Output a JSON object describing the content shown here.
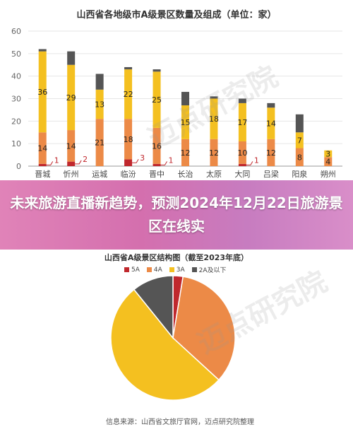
{
  "chart_data": [
    {
      "type": "bar",
      "title": "山西省各地级市A级景区数量及组成（单位：家）",
      "categories": [
        "晋城",
        "忻州",
        "运城",
        "临汾",
        "晋中",
        "长治",
        "太原",
        "大同",
        "吕梁",
        "阳泉",
        "朔州"
      ],
      "ylim": [
        0,
        60
      ],
      "yticks": [
        0,
        10,
        20,
        30,
        40,
        50,
        60
      ],
      "series": [
        {
          "name": "5A",
          "color": "#c0282d",
          "values": [
            1,
            2,
            0,
            3,
            1,
            0,
            0,
            1,
            0,
            0,
            0
          ]
        },
        {
          "name": "4A",
          "color": "#ec8a47",
          "values": [
            14,
            14,
            21,
            18,
            16,
            12,
            12,
            10,
            12,
            8,
            4
          ]
        },
        {
          "name": "3A",
          "color": "#f4c020",
          "values": [
            36,
            29,
            13,
            22,
            25,
            15,
            18,
            17,
            14,
            7,
            3
          ]
        },
        {
          "name": "2A及以下",
          "color": "#555555",
          "values": [
            1,
            6,
            7,
            1,
            1,
            6,
            1,
            2,
            2,
            8,
            0
          ]
        }
      ],
      "data_labels": [
        {
          "cat": "晋城",
          "series": "5A",
          "text": "1"
        },
        {
          "cat": "忻州",
          "series": "5A",
          "text": "2"
        },
        {
          "cat": "临汾",
          "series": "5A",
          "text": "3"
        },
        {
          "cat": "晋中",
          "series": "5A",
          "text": "1"
        },
        {
          "cat": "大同",
          "series": "5A",
          "text": "1"
        },
        {
          "cat": "晋城",
          "series": "4A",
          "text": "14"
        },
        {
          "cat": "忻州",
          "series": "4A",
          "text": "14"
        },
        {
          "cat": "运城",
          "series": "4A",
          "text": "21"
        },
        {
          "cat": "临汾",
          "series": "4A",
          "text": "18"
        },
        {
          "cat": "晋中",
          "series": "4A",
          "text": "16"
        },
        {
          "cat": "长治",
          "series": "4A",
          "text": "12"
        },
        {
          "cat": "太原",
          "series": "4A",
          "text": "12"
        },
        {
          "cat": "大同",
          "series": "4A",
          "text": "10"
        },
        {
          "cat": "吕梁",
          "series": "4A",
          "text": "12"
        },
        {
          "cat": "阳泉",
          "series": "4A",
          "text": "8"
        },
        {
          "cat": "朔州",
          "series": "4A",
          "text": "4"
        },
        {
          "cat": "晋城",
          "series": "3A",
          "text": "36"
        },
        {
          "cat": "忻州",
          "series": "3A",
          "text": "29"
        },
        {
          "cat": "运城",
          "series": "3A",
          "text": "13"
        },
        {
          "cat": "临汾",
          "series": "3A",
          "text": "22"
        },
        {
          "cat": "晋中",
          "series": "3A",
          "text": "25"
        },
        {
          "cat": "长治",
          "series": "3A",
          "text": "15"
        },
        {
          "cat": "太原",
          "series": "3A",
          "text": "18"
        },
        {
          "cat": "大同",
          "series": "3A",
          "text": "17"
        },
        {
          "cat": "吕梁",
          "series": "3A",
          "text": "14"
        },
        {
          "cat": "阳泉",
          "series": "3A",
          "text": "7"
        },
        {
          "cat": "朔州",
          "series": "3A",
          "text": "3"
        }
      ]
    },
    {
      "type": "pie",
      "title": "山西省A级景区结构图（截至2023年底）",
      "legend": [
        "5A",
        "4A",
        "3A",
        "2A及以下"
      ],
      "colors": [
        "#c0282d",
        "#ec8a47",
        "#f4c020",
        "#555555"
      ],
      "values": [
        2.6,
        34.2,
        52.4,
        10.8
      ]
    }
  ],
  "banner": {
    "text": "未来旅游直播新趋势，预测2024年12月22日旅游景区在线实"
  },
  "source": {
    "label": "信息来源：山西省文旅厅官网，迈点研究院整理"
  },
  "watermark": {
    "text": "迈点研究院"
  }
}
